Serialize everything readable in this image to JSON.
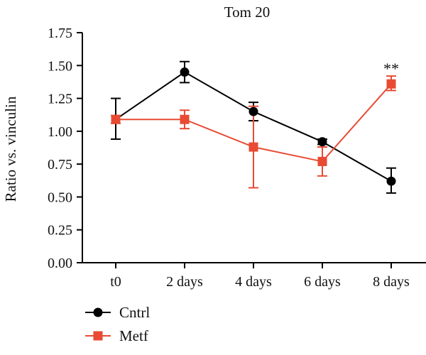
{
  "chart_data": {
    "type": "line",
    "title": "Tom 20",
    "xlabel": "",
    "ylabel": "Ratio vs. vinculin",
    "categories": [
      "t0",
      "2 days",
      "4 days",
      "6 days",
      "8 days"
    ],
    "ylim": [
      0,
      1.75
    ],
    "yticks": [
      "0.00",
      "0.25",
      "0.50",
      "0.75",
      "1.00",
      "1.25",
      "1.50",
      "1.75"
    ],
    "grid": false,
    "legend_position": "bottom-left",
    "series": [
      {
        "name": "Cntrl",
        "color": "#000000",
        "marker": "circle",
        "values": [
          1.09,
          1.45,
          1.15,
          0.92,
          0.62
        ],
        "err_low": [
          0.94,
          1.37,
          1.08,
          0.9,
          0.53
        ],
        "err_high": [
          1.25,
          1.53,
          1.22,
          0.94,
          0.72
        ]
      },
      {
        "name": "Metf",
        "color": "#e84a33",
        "marker": "square",
        "values": [
          1.09,
          1.09,
          0.88,
          0.77,
          1.36
        ],
        "err_low": [
          1.06,
          1.02,
          0.57,
          0.66,
          1.31
        ],
        "err_high": [
          1.12,
          1.16,
          1.19,
          0.88,
          1.42
        ]
      }
    ],
    "annotations": [
      {
        "text": "**",
        "category": "8 days",
        "y": 1.47
      }
    ]
  }
}
